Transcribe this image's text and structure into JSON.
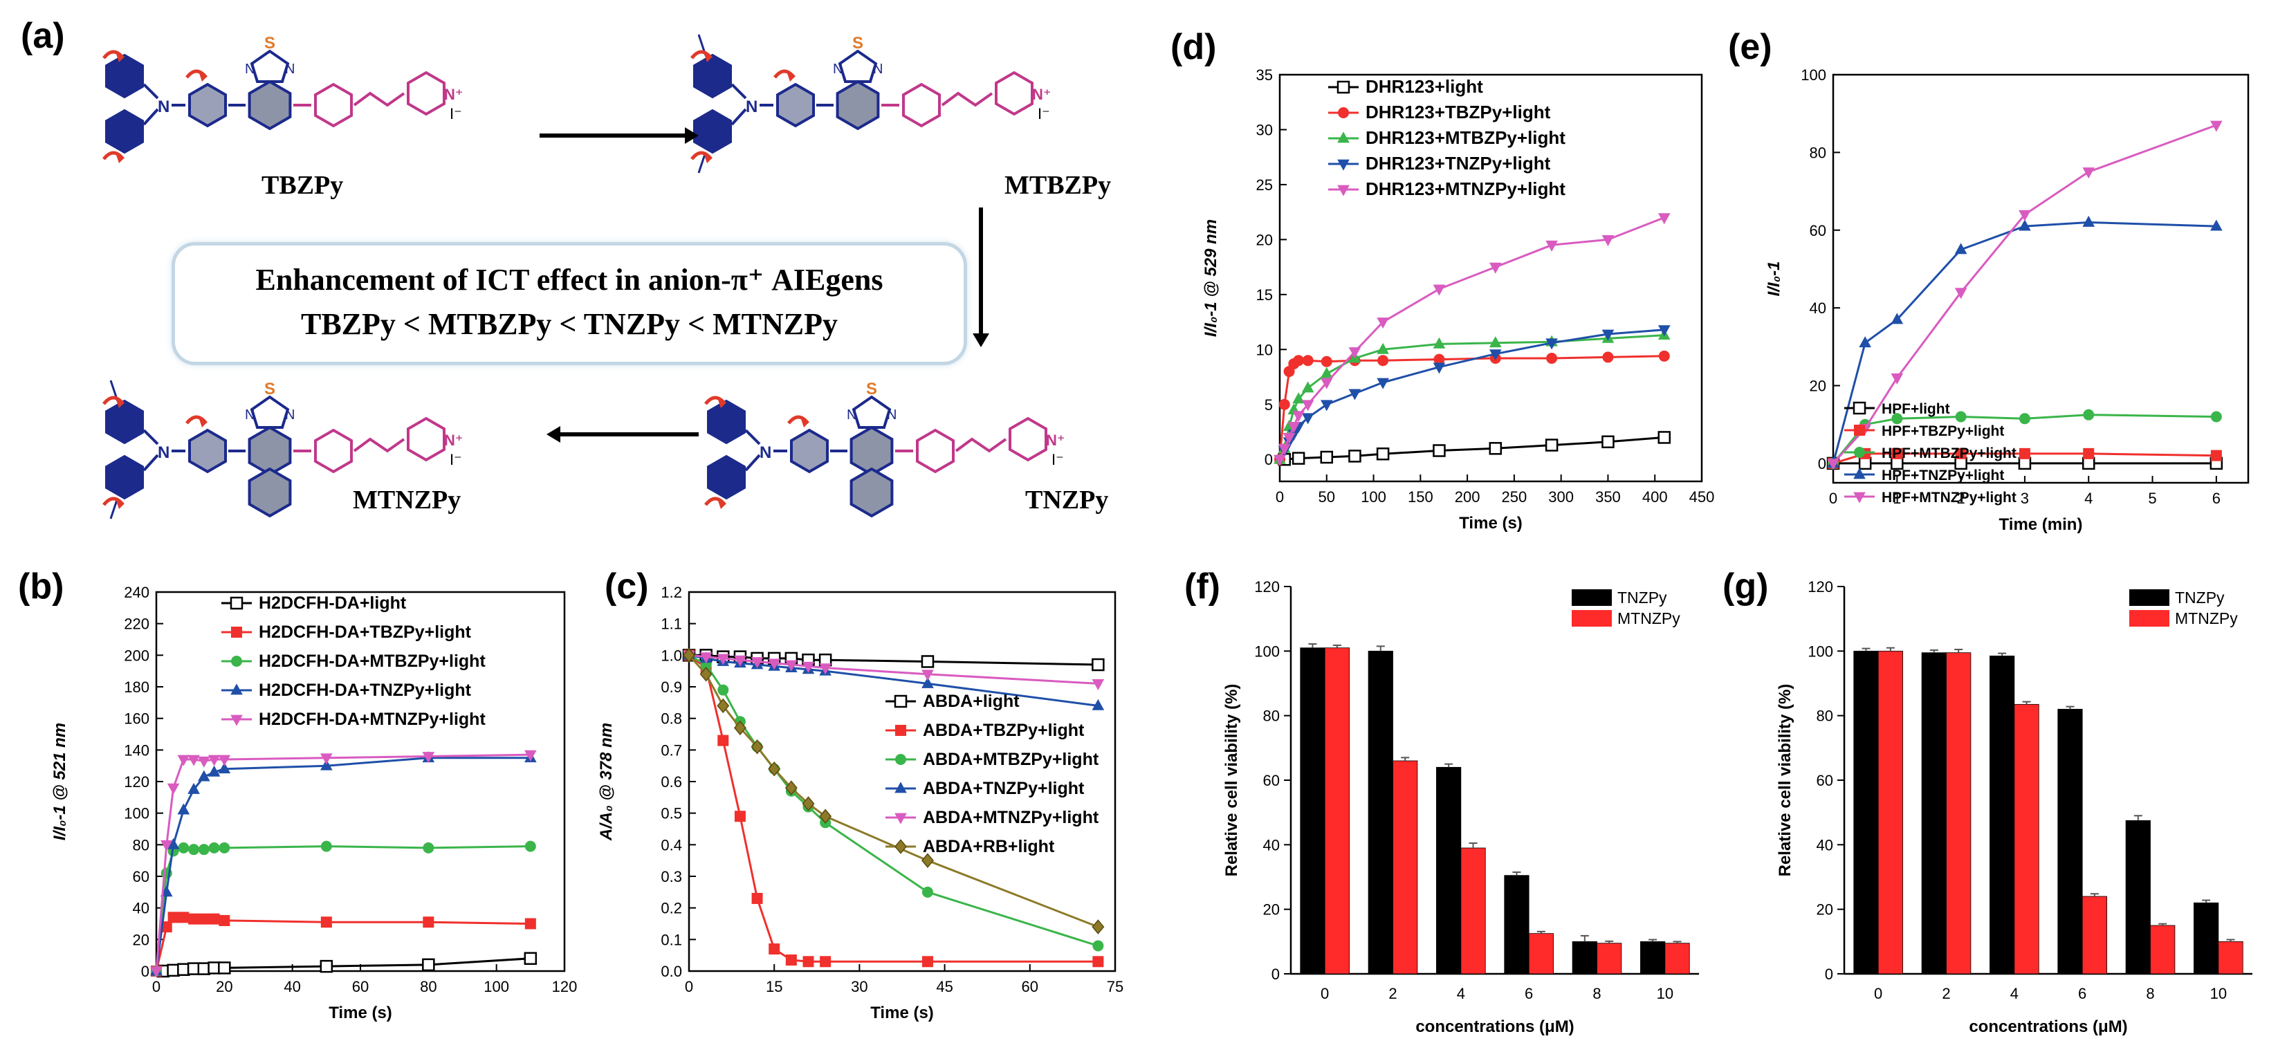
{
  "panel_labels": {
    "a": "(a)",
    "b": "(b)",
    "c": "(c)",
    "d": "(d)",
    "e": "(e)",
    "f": "(f)",
    "g": "(g)"
  },
  "scheme": {
    "molecules": [
      "TBZPy",
      "MTBZPy",
      "TNZPy",
      "MTNZPy"
    ],
    "ict_line1": "Enhancement of ICT effect in anion-π⁺ AIEgens",
    "ict_line2": "TBZPy < MTBZPy < TNZPy < MTNZPy",
    "atom_S": "S",
    "atom_N": "N",
    "atom_N_plus": "N⁺",
    "iodide": "I⁻",
    "colors": {
      "donor": "#1c2a8c",
      "core_fill": "#8d94a8",
      "acceptor": "#c0388a",
      "sulfur": "#e07a2a",
      "arrow": "#e03a2a"
    }
  },
  "chart_data": [
    {
      "id": "b",
      "type": "line",
      "xlabel": "Time (s)",
      "ylabel": "I/I₀-1 @ 521 nm",
      "xlim": [
        0,
        120
      ],
      "ylim": [
        0,
        240
      ],
      "xticks": [
        0,
        20,
        40,
        60,
        80,
        100,
        120
      ],
      "yticks": [
        0,
        20,
        40,
        60,
        80,
        100,
        120,
        140,
        160,
        180,
        200,
        220,
        240
      ],
      "series": [
        {
          "name": "H2DCFH-DA+light",
          "color": "#000000",
          "marker": "square-open",
          "x": [
            2,
            5,
            8,
            11,
            14,
            17,
            20,
            50,
            80,
            110
          ],
          "y": [
            0,
            0.5,
            1,
            1.5,
            1.5,
            2,
            2,
            3,
            4,
            8
          ]
        },
        {
          "name": "H2DCFH-DA+TBZPy+light",
          "color": "#f0302c",
          "marker": "square",
          "x": [
            0,
            3,
            5,
            8,
            11,
            14,
            17,
            20,
            50,
            80,
            110
          ],
          "y": [
            0,
            28,
            34,
            34,
            33,
            33,
            33,
            32,
            31,
            31,
            30
          ]
        },
        {
          "name": "H2DCFH-DA+MTBZPy+light",
          "color": "#3ab54a",
          "marker": "circle",
          "x": [
            0,
            3,
            5,
            8,
            11,
            14,
            17,
            20,
            50,
            80,
            110
          ],
          "y": [
            0,
            62,
            76,
            78,
            77,
            77,
            78,
            78,
            79,
            78,
            79
          ]
        },
        {
          "name": "H2DCFH-DA+TNZPy+light",
          "color": "#1f4fa8",
          "marker": "triangle",
          "x": [
            0,
            3,
            5,
            8,
            11,
            14,
            17,
            20,
            50,
            80,
            110
          ],
          "y": [
            0,
            50,
            80,
            102,
            115,
            123,
            126,
            128,
            130,
            135,
            135
          ]
        },
        {
          "name": "H2DCFH-DA+MTNZPy+light",
          "color": "#d95bc0",
          "marker": "triangle-down",
          "x": [
            0,
            3,
            5,
            8,
            11,
            14,
            17,
            20,
            50,
            80,
            110
          ],
          "y": [
            0,
            80,
            116,
            134,
            134,
            133,
            134,
            134,
            135,
            136,
            137
          ]
        }
      ]
    },
    {
      "id": "c",
      "type": "line",
      "xlabel": "Time (s)",
      "ylabel": "A/A₀ @ 378 nm",
      "xlim": [
        0,
        75
      ],
      "ylim": [
        0,
        1.2
      ],
      "xticks": [
        0,
        15,
        30,
        45,
        60,
        75
      ],
      "yticks": [
        0.0,
        0.1,
        0.2,
        0.3,
        0.4,
        0.5,
        0.6,
        0.7,
        0.8,
        0.9,
        1.0,
        1.1,
        1.2
      ],
      "series": [
        {
          "name": "ABDA+light",
          "color": "#000000",
          "marker": "square-open",
          "x": [
            0,
            3,
            6,
            9,
            12,
            15,
            18,
            21,
            24,
            42,
            72
          ],
          "y": [
            1.0,
            1.0,
            0.995,
            0.995,
            0.99,
            0.99,
            0.99,
            0.985,
            0.985,
            0.98,
            0.97
          ]
        },
        {
          "name": "ABDA+TBZPy+light",
          "color": "#f0302c",
          "marker": "square",
          "x": [
            0,
            3,
            6,
            9,
            12,
            15,
            18,
            21,
            24,
            42,
            72
          ],
          "y": [
            1.0,
            0.96,
            0.73,
            0.49,
            0.23,
            0.07,
            0.035,
            0.03,
            0.03,
            0.03,
            0.03
          ]
        },
        {
          "name": "ABDA+MTBZPy+light",
          "color": "#3ab54a",
          "marker": "circle",
          "x": [
            0,
            3,
            6,
            9,
            12,
            15,
            18,
            21,
            24,
            42,
            72
          ],
          "y": [
            1.0,
            0.97,
            0.89,
            0.79,
            0.71,
            0.64,
            0.57,
            0.52,
            0.47,
            0.25,
            0.08
          ]
        },
        {
          "name": "ABDA+TNZPy+light",
          "color": "#1f4fa8",
          "marker": "triangle",
          "x": [
            0,
            3,
            6,
            9,
            12,
            15,
            18,
            21,
            24,
            42,
            72
          ],
          "y": [
            1.0,
            0.99,
            0.98,
            0.975,
            0.97,
            0.965,
            0.96,
            0.955,
            0.95,
            0.91,
            0.84
          ]
        },
        {
          "name": "ABDA+MTNZPy+light",
          "color": "#d95bc0",
          "marker": "triangle-down",
          "x": [
            0,
            3,
            6,
            9,
            12,
            15,
            18,
            21,
            24,
            42,
            72
          ],
          "y": [
            1.0,
            0.995,
            0.99,
            0.985,
            0.98,
            0.975,
            0.97,
            0.965,
            0.96,
            0.94,
            0.91
          ]
        },
        {
          "name": "ABDA+RB+light",
          "color": "#8c7a28",
          "marker": "diamond",
          "x": [
            0,
            3,
            6,
            9,
            12,
            15,
            18,
            21,
            24,
            42,
            72
          ],
          "y": [
            1.0,
            0.94,
            0.84,
            0.77,
            0.71,
            0.64,
            0.58,
            0.53,
            0.49,
            0.35,
            0.14
          ]
        }
      ]
    },
    {
      "id": "d",
      "type": "line",
      "xlabel": "Time (s)",
      "ylabel": "I/I₀-1 @ 529 nm",
      "xlim": [
        0,
        450
      ],
      "ylim": [
        -2,
        35
      ],
      "xticks": [
        0,
        50,
        100,
        150,
        200,
        250,
        300,
        350,
        400,
        450
      ],
      "yticks": [
        0,
        5,
        10,
        15,
        20,
        25,
        30,
        35
      ],
      "series": [
        {
          "name": "DHR123+light",
          "color": "#000000",
          "marker": "square-open",
          "x": [
            5,
            20,
            50,
            80,
            110,
            170,
            230,
            290,
            350,
            410
          ],
          "y": [
            0,
            0.1,
            0.2,
            0.3,
            0.5,
            0.8,
            1.0,
            1.3,
            1.6,
            2.0
          ]
        },
        {
          "name": "DHR123+TBZPy+light",
          "color": "#f0302c",
          "marker": "circle",
          "x": [
            0,
            5,
            10,
            15,
            20,
            30,
            50,
            80,
            110,
            170,
            230,
            290,
            350,
            410
          ],
          "y": [
            0,
            5,
            8,
            8.7,
            9,
            9,
            8.9,
            9,
            9,
            9.1,
            9.2,
            9.2,
            9.3,
            9.4
          ]
        },
        {
          "name": "DHR123+MTBZPy+light",
          "color": "#3ab54a",
          "marker": "triangle",
          "x": [
            0,
            5,
            10,
            15,
            20,
            30,
            50,
            80,
            110,
            170,
            230,
            290,
            350,
            410
          ],
          "y": [
            0,
            1,
            3,
            4.5,
            5.5,
            6.5,
            7.8,
            9.2,
            10,
            10.5,
            10.6,
            10.7,
            11.0,
            11.3
          ]
        },
        {
          "name": "DHR123+TNZPy+light",
          "color": "#1f4fa8",
          "marker": "triangle-down",
          "x": [
            0,
            5,
            10,
            15,
            20,
            30,
            50,
            80,
            110,
            170,
            230,
            290,
            350,
            410
          ],
          "y": [
            0,
            0.8,
            1.6,
            2.3,
            3,
            3.8,
            5,
            6,
            7,
            8.4,
            9.6,
            10.6,
            11.4,
            11.8
          ]
        },
        {
          "name": "DHR123+MTNZPy+light",
          "color": "#d95bc0",
          "marker": "triangle-down",
          "x": [
            0,
            5,
            10,
            15,
            20,
            30,
            50,
            80,
            110,
            170,
            230,
            290,
            350,
            410
          ],
          "y": [
            0,
            1,
            2,
            3,
            4,
            5,
            7,
            9.8,
            12.5,
            15.5,
            17.5,
            19.5,
            20,
            22
          ]
        }
      ]
    },
    {
      "id": "e",
      "type": "line",
      "xlabel": "Time (min)",
      "ylabel": "I/I₀-1",
      "xlim": [
        0,
        6.5
      ],
      "ylim": [
        -5,
        100
      ],
      "xticks": [
        0,
        1,
        2,
        3,
        4,
        5,
        6
      ],
      "yticks": [
        0,
        20,
        40,
        60,
        80,
        100
      ],
      "series": [
        {
          "name": "HPF+light",
          "color": "#000000",
          "marker": "square-open",
          "x": [
            0,
            0.5,
            1,
            2,
            3,
            4,
            6
          ],
          "y": [
            0,
            0,
            0,
            0,
            0,
            0,
            0
          ]
        },
        {
          "name": "HPF+TBZPy+light",
          "color": "#f0302c",
          "marker": "square",
          "x": [
            0,
            0.5,
            1,
            2,
            3,
            4,
            6
          ],
          "y": [
            0,
            2.5,
            2.5,
            2.5,
            2.5,
            2.5,
            2
          ]
        },
        {
          "name": "HPF+MTBZPy+light",
          "color": "#3ab54a",
          "marker": "circle",
          "x": [
            0,
            0.5,
            1,
            2,
            3,
            4,
            6
          ],
          "y": [
            0,
            10,
            11.5,
            12,
            11.5,
            12.5,
            12
          ]
        },
        {
          "name": "HPF+TNZPy+light",
          "color": "#1f4fa8",
          "marker": "triangle",
          "x": [
            0,
            0.5,
            1,
            2,
            3,
            4,
            6
          ],
          "y": [
            0,
            31,
            37,
            55,
            61,
            62,
            61
          ]
        },
        {
          "name": "HPF+MTNZPy+light",
          "color": "#d95bc0",
          "marker": "triangle-down",
          "x": [
            0,
            0.5,
            1,
            2,
            3,
            4,
            6
          ],
          "y": [
            0,
            9,
            22,
            44,
            64,
            75,
            87
          ]
        }
      ]
    },
    {
      "id": "f",
      "type": "bar",
      "xlabel": "concentrations (μM)",
      "ylabel": "Relative cell viability (%)",
      "ylim": [
        0,
        120
      ],
      "yticks": [
        0,
        20,
        40,
        60,
        80,
        100,
        120
      ],
      "categories": [
        "0",
        "2",
        "4",
        "6",
        "8",
        "10"
      ],
      "series": [
        {
          "name": "TNZPy",
          "color": "#000000",
          "values": [
            101,
            100,
            64,
            30.5,
            10,
            10
          ],
          "errors": [
            1.2,
            1.5,
            1,
            1,
            1.8,
            0.6
          ]
        },
        {
          "name": "MTNZPy",
          "color": "#ff2a2a",
          "values": [
            101,
            66,
            39,
            12.5,
            9.5,
            9.5
          ],
          "errors": [
            0.8,
            1,
            1.5,
            0.6,
            0.6,
            0.5
          ]
        }
      ]
    },
    {
      "id": "g",
      "type": "bar",
      "xlabel": "concentrations (μM)",
      "ylabel": "Relative cell viability (%)",
      "ylim": [
        0,
        120
      ],
      "yticks": [
        0,
        20,
        40,
        60,
        80,
        100,
        120
      ],
      "categories": [
        "0",
        "2",
        "4",
        "6",
        "8",
        "10"
      ],
      "series": [
        {
          "name": "TNZPy",
          "color": "#000000",
          "values": [
            100,
            99.5,
            98.5,
            82,
            47.5,
            22
          ],
          "errors": [
            0.8,
            0.8,
            0.8,
            0.8,
            1.5,
            0.8
          ]
        },
        {
          "name": "MTNZPy",
          "color": "#ff2a2a",
          "values": [
            100,
            99.5,
            83.5,
            24,
            15,
            10
          ],
          "errors": [
            1,
            1,
            0.8,
            0.8,
            0.5,
            0.6
          ]
        }
      ]
    }
  ]
}
